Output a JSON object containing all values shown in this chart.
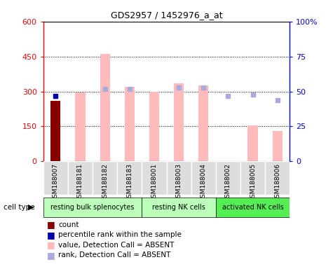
{
  "title": "GDS2957 / 1452976_a_at",
  "samples": [
    "GSM188007",
    "GSM188181",
    "GSM188182",
    "GSM188183",
    "GSM188001",
    "GSM188003",
    "GSM188004",
    "GSM188002",
    "GSM188005",
    "GSM188006"
  ],
  "value_bars": [
    null,
    295,
    460,
    320,
    300,
    335,
    325,
    null,
    153,
    130
  ],
  "rank_dots_pct": [
    null,
    null,
    52,
    52,
    null,
    53,
    53,
    47,
    48,
    44
  ],
  "count_bar_val": 260,
  "count_bar_idx": 0,
  "percentile_pct": 47,
  "percentile_idx": 0,
  "ylim_left": [
    0,
    600
  ],
  "ylim_right": [
    0,
    100
  ],
  "yticks_left": [
    0,
    150,
    300,
    450,
    600
  ],
  "yticks_right": [
    0,
    25,
    50,
    75,
    100
  ],
  "bar_width": 0.4,
  "value_color": "#ffbbbb",
  "rank_color": "#aaaadd",
  "count_color": "#880000",
  "percentile_color": "#0000aa",
  "groups": [
    {
      "label": "resting bulk splenocytes",
      "start": 0,
      "end": 3,
      "color": "#bbffbb"
    },
    {
      "label": "resting NK cells",
      "start": 4,
      "end": 6,
      "color": "#bbffbb"
    },
    {
      "label": "activated NK cells",
      "start": 7,
      "end": 9,
      "color": "#55ee55"
    }
  ],
  "legend_items": [
    {
      "color": "#880000",
      "label": "count"
    },
    {
      "color": "#0000aa",
      "label": "percentile rank within the sample"
    },
    {
      "color": "#ffbbbb",
      "label": "value, Detection Call = ABSENT"
    },
    {
      "color": "#aaaadd",
      "label": "rank, Detection Call = ABSENT"
    }
  ]
}
